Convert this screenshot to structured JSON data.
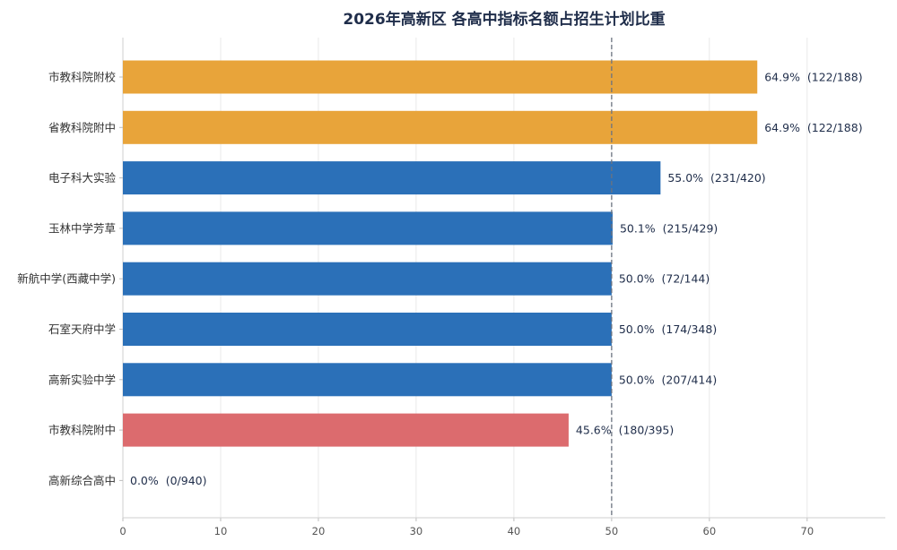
{
  "chart_data": {
    "type": "bar",
    "orientation": "horizontal",
    "title": "2026年高新区 各高中指标名额占招生计划比重",
    "xlabel": "",
    "ylabel": "",
    "xlim": [
      0,
      78
    ],
    "xticks": [
      0,
      10,
      20,
      30,
      40,
      50,
      60,
      70
    ],
    "grid": true,
    "reference_line": {
      "value": 50,
      "style": "dashed"
    },
    "categories": [
      "市教科院附校",
      "省教科院附中",
      "电子科大实验",
      "玉林中学芳草",
      "新航中学(西藏中学)",
      "石室天府中学",
      "高新实验中学",
      "市教科院附中",
      "高新综合高中"
    ],
    "values": [
      64.9,
      64.9,
      55.0,
      50.1,
      50.0,
      50.0,
      50.0,
      45.6,
      0.0
    ],
    "labels": [
      "64.9%  (122/188)",
      "64.9%  (122/188)",
      "55.0%  (231/420)",
      "50.1%  (215/429)",
      "50.0%  (72/144)",
      "50.0%  (174/348)",
      "50.0%  (207/414)",
      "45.6%  (180/395)",
      "0.0%  (0/940)"
    ],
    "colors": [
      "#e8a43a",
      "#e8a43a",
      "#2b70b8",
      "#2b70b8",
      "#2b70b8",
      "#2b70b8",
      "#2b70b8",
      "#dc6b6e",
      "#2b70b8"
    ]
  }
}
